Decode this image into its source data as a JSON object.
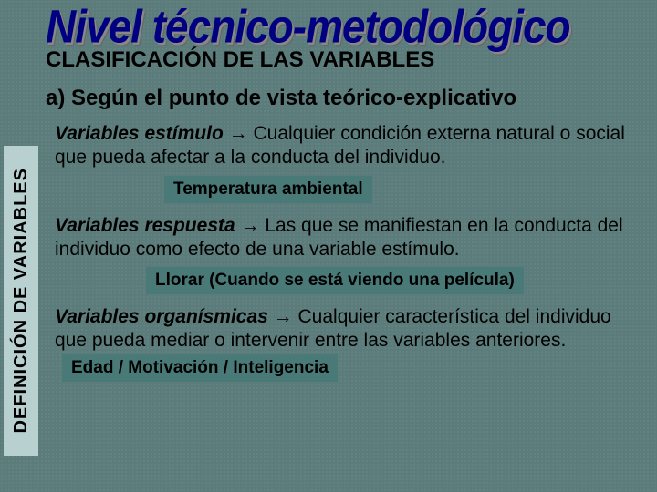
{
  "colors": {
    "background": "#5c7c7c",
    "title_color": "#000080",
    "text_color": "#000000",
    "tag_background": "#4a7a78",
    "vertical_label_background": "#b8d0d0"
  },
  "typography": {
    "title_fontsize": 46,
    "subtitle_fontsize": 24,
    "body_fontsize": 21,
    "tag_fontsize": 19,
    "font_family": "Arial"
  },
  "title": "Nivel técnico-metodológico",
  "subtitle": "CLASIFICACIÓN DE LAS VARIABLES",
  "section_header": "a) Según el punto de vista teórico-explicativo",
  "vertical_label": "DEFINICIÓN DE VARIABLES",
  "block1": {
    "term": "Variables estímulo",
    "arrow": " → ",
    "text": "Cualquier condición externa natural o social que pueda afectar a la conducta del individuo.",
    "tag": "Temperatura ambiental"
  },
  "block2": {
    "term": "Variables respuesta",
    "arrow": " → ",
    "text": "Las que se manifiestan en la conducta del individuo como efecto de una variable estímulo.",
    "tag": "Llorar (Cuando se está viendo una película)"
  },
  "block3": {
    "term": "Variables organísmicas",
    "arrow": " → ",
    "text": "Cualquier característica del individuo que pueda mediar o intervenir entre las variables anteriores.",
    "tag": "Edad / Motivación / Inteligencia"
  }
}
